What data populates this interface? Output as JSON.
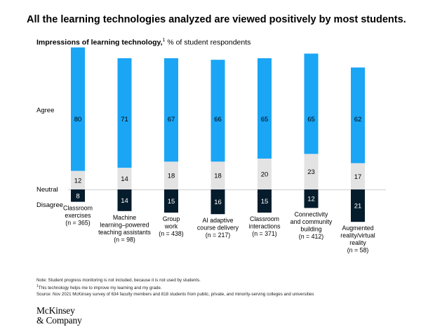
{
  "headline": "All the learning technologies analyzed are viewed positively by most students.",
  "subtitle": {
    "bold": "Impressions of learning technology,",
    "footnote_mark": "1",
    "rest": " % of student respondents"
  },
  "chart_data": {
    "type": "bar",
    "stacked": true,
    "title": "Impressions of learning technology",
    "unit": "% of student respondents",
    "row_labels": [
      "Agree",
      "Neutral",
      "Disagree"
    ],
    "categories": [
      {
        "lines": [
          "Classroom",
          "exercises",
          "(n = 365)"
        ]
      },
      {
        "lines": [
          "Machine",
          "learning–powered",
          "teaching assistants",
          "(n = 98)"
        ]
      },
      {
        "lines": [
          "Group",
          "work",
          "(n = 438)"
        ]
      },
      {
        "lines": [
          "AI adaptive",
          "course delivery",
          "(n = 217)"
        ]
      },
      {
        "lines": [
          "Classroom",
          "interactions",
          "(n = 371)"
        ]
      },
      {
        "lines": [
          "Connectivity",
          "and community",
          "building",
          "(n = 412)"
        ]
      },
      {
        "lines": [
          "Augmented",
          "reality/virtual",
          "reality",
          "(n = 58)"
        ]
      }
    ],
    "series": [
      {
        "name": "Agree",
        "color": "#1aa5f5",
        "values": [
          80,
          71,
          67,
          66,
          65,
          65,
          62
        ]
      },
      {
        "name": "Neutral",
        "color": "#e3e3e3",
        "values": [
          12,
          14,
          18,
          18,
          20,
          23,
          17
        ]
      },
      {
        "name": "Disagree",
        "color": "#051c2c",
        "values": [
          8,
          14,
          15,
          16,
          15,
          12,
          21
        ]
      }
    ]
  },
  "notes": {
    "note": "Note: Student progress monitoring is not included, because it is not used by students.",
    "footnote_mark": "1",
    "footnote": "This technology helps me to improve my learning and my grade.",
    "source": "Source: Nov 2021 McKinsey survey of 634 faculty members and 818 students from public, private, and minority-serving colleges and universities"
  },
  "logo": {
    "line1": "McKinsey",
    "line2": "& Company"
  }
}
